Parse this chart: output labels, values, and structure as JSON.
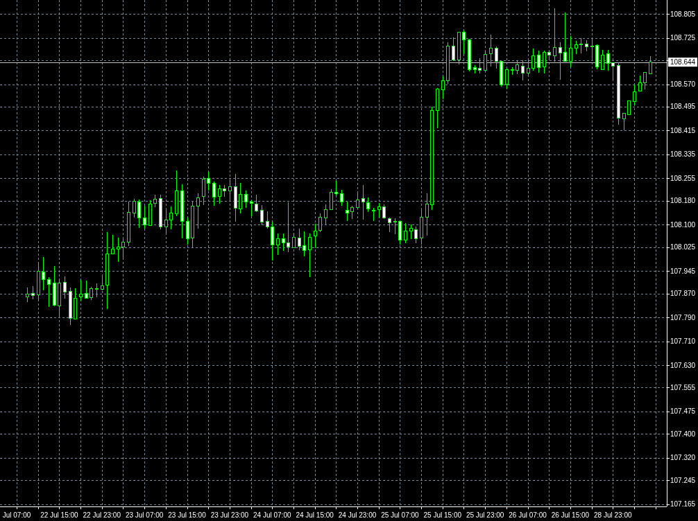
{
  "chart_data": {
    "type": "candlestick",
    "categories": [
      "Jul 07:00",
      null,
      null,
      null,
      null,
      null,
      null,
      null,
      "22 Jul 15:00",
      null,
      null,
      null,
      null,
      null,
      null,
      null,
      "22 Jul 23:00",
      null,
      null,
      null,
      null,
      null,
      null,
      null,
      "23 Jul 07:00",
      null,
      null,
      null,
      null,
      null,
      null,
      null,
      "23 Jul 15:00",
      null,
      null,
      null,
      null,
      null,
      null,
      null,
      "23 Jul 23:00",
      null,
      null,
      null,
      null,
      null,
      null,
      null,
      "24 Jul 07:00",
      null,
      null,
      null,
      null,
      null,
      null,
      null,
      "24 Jul 15:00",
      null,
      null,
      null,
      null,
      null,
      null,
      null,
      "24 Jul 23:00",
      null,
      null,
      null,
      null,
      null,
      null,
      null,
      "25 Jul 07:00",
      null,
      null,
      null,
      null,
      null,
      null,
      null,
      "25 Jul 15:00",
      null,
      null,
      null,
      null,
      null,
      null,
      null,
      "25 Jul 23:00",
      null,
      null,
      null,
      null,
      null,
      null,
      null,
      "26 Jul 07:00",
      null,
      null,
      null,
      null,
      null,
      null,
      null,
      "26 Jul 15:00",
      null,
      null,
      null,
      null,
      null,
      null,
      null,
      "28 Jul 23:00",
      null,
      null,
      null,
      null,
      null,
      null,
      null
    ],
    "ohlc": [
      null,
      null,
      [
        107.858,
        107.89,
        107.84,
        107.868
      ],
      [
        107.87,
        107.894,
        107.851,
        107.863
      ],
      [
        107.865,
        107.973,
        107.846,
        107.945
      ],
      [
        107.942,
        107.992,
        107.88,
        107.917
      ],
      [
        107.917,
        107.925,
        107.824,
        107.901
      ],
      [
        107.905,
        107.962,
        107.828,
        107.83
      ],
      [
        107.828,
        107.917,
        107.795,
        107.905
      ],
      [
        107.908,
        107.927,
        107.853,
        107.874
      ],
      [
        107.877,
        107.89,
        107.765,
        107.787
      ],
      [
        107.784,
        107.887,
        107.784,
        107.854
      ],
      [
        107.858,
        107.915,
        107.846,
        107.867
      ],
      [
        107.87,
        107.913,
        107.852,
        107.853
      ],
      [
        107.857,
        107.892,
        107.849,
        107.887
      ],
      [
        107.885,
        107.903,
        107.857,
        107.887
      ],
      [
        107.884,
        107.926,
        107.88,
        107.896
      ],
      [
        107.897,
        108.075,
        107.819,
        108.003
      ],
      [
        108.002,
        108.066,
        108.0,
        108.019
      ],
      [
        108.019,
        108.056,
        107.976,
        108.026
      ],
      [
        108.025,
        108.054,
        107.99,
        108.042
      ],
      [
        108.041,
        108.178,
        108.029,
        108.142
      ],
      [
        108.139,
        108.186,
        108.125,
        108.178
      ],
      [
        108.177,
        108.184,
        108.089,
        108.123
      ],
      [
        108.123,
        108.163,
        108.087,
        108.1
      ],
      [
        108.097,
        108.182,
        108.097,
        108.17
      ],
      [
        108.171,
        108.201,
        108.159,
        108.186
      ],
      [
        108.188,
        108.2,
        108.085,
        108.093
      ],
      [
        108.093,
        108.149,
        108.071,
        108.116
      ],
      [
        108.116,
        108.161,
        108.085,
        108.139
      ],
      [
        108.136,
        108.282,
        108.129,
        108.214
      ],
      [
        108.214,
        108.235,
        108.054,
        108.112
      ],
      [
        108.112,
        108.124,
        108.033,
        108.054
      ],
      [
        108.056,
        108.178,
        108.023,
        108.163
      ],
      [
        108.163,
        108.204,
        108.087,
        108.19
      ],
      [
        108.195,
        108.261,
        108.166,
        108.253
      ],
      [
        108.255,
        108.278,
        108.214,
        108.239
      ],
      [
        108.239,
        108.245,
        108.164,
        108.193
      ],
      [
        108.195,
        108.234,
        108.17,
        108.22
      ],
      [
        108.22,
        108.234,
        108.193,
        108.213
      ],
      [
        108.213,
        108.249,
        108.185,
        108.227
      ],
      [
        108.227,
        108.271,
        108.11,
        108.155
      ],
      [
        108.152,
        108.24,
        108.137,
        108.202
      ],
      [
        108.202,
        108.214,
        108.156,
        108.176
      ],
      [
        108.177,
        108.181,
        108.129,
        108.171
      ],
      [
        108.169,
        108.2,
        108.142,
        108.145
      ],
      [
        108.149,
        108.166,
        108.098,
        108.108
      ],
      [
        108.112,
        108.145,
        108.087,
        108.093
      ],
      [
        108.093,
        108.11,
        107.979,
        108.033
      ],
      [
        108.033,
        108.07,
        107.999,
        108.054
      ],
      [
        108.054,
        108.07,
        108.013,
        108.04
      ],
      [
        108.04,
        108.176,
        108.008,
        108.025
      ],
      [
        108.023,
        108.071,
        108.023,
        108.058
      ],
      [
        108.056,
        108.087,
        108.016,
        108.027
      ],
      [
        108.03,
        108.078,
        107.993,
        108.013
      ],
      [
        108.016,
        108.071,
        107.925,
        108.058
      ],
      [
        108.062,
        108.102,
        108.021,
        108.079
      ],
      [
        108.081,
        108.137,
        108.075,
        108.124
      ],
      [
        108.122,
        108.168,
        108.101,
        108.151
      ],
      [
        108.15,
        108.22,
        108.15,
        108.209
      ],
      [
        108.209,
        108.247,
        108.197,
        108.204
      ],
      [
        108.204,
        108.217,
        108.164,
        108.176
      ],
      [
        108.149,
        108.177,
        108.112,
        108.139
      ],
      [
        108.143,
        108.164,
        108.119,
        108.158
      ],
      [
        108.157,
        108.204,
        108.152,
        108.183
      ],
      [
        108.187,
        108.234,
        108.118,
        108.176
      ],
      [
        108.174,
        108.191,
        108.142,
        108.152
      ],
      [
        108.149,
        108.156,
        108.112,
        108.148
      ],
      [
        108.15,
        108.172,
        108.125,
        108.16
      ],
      [
        108.16,
        108.168,
        108.119,
        108.122
      ],
      [
        108.12,
        108.125,
        108.075,
        108.106
      ],
      [
        108.112,
        108.122,
        108.069,
        108.111
      ],
      [
        108.111,
        108.112,
        108.033,
        108.048
      ],
      [
        108.048,
        108.105,
        108.037,
        108.079
      ],
      [
        108.079,
        108.101,
        108.052,
        108.087
      ],
      [
        108.084,
        108.093,
        108.039,
        108.054
      ],
      [
        108.056,
        108.15,
        108.033,
        108.125
      ],
      [
        108.125,
        108.204,
        108.064,
        108.168
      ],
      [
        108.166,
        108.494,
        108.149,
        108.483
      ],
      [
        108.483,
        108.558,
        108.423,
        108.554
      ],
      [
        108.552,
        108.597,
        108.52,
        108.582
      ],
      [
        108.582,
        108.711,
        108.571,
        108.698
      ],
      [
        108.698,
        108.727,
        108.647,
        108.651
      ],
      [
        108.651,
        108.745,
        108.637,
        108.745
      ],
      [
        108.745,
        108.749,
        108.672,
        108.719
      ],
      [
        108.719,
        108.721,
        108.614,
        108.619
      ],
      [
        108.625,
        108.634,
        108.606,
        108.619
      ],
      [
        108.624,
        108.657,
        108.606,
        108.616
      ],
      [
        108.616,
        108.68,
        108.616,
        108.67
      ],
      [
        108.672,
        108.736,
        108.629,
        108.69
      ],
      [
        108.69,
        108.696,
        108.623,
        108.646
      ],
      [
        108.647,
        108.648,
        108.562,
        108.568
      ],
      [
        108.57,
        108.622,
        108.556,
        108.618
      ],
      [
        108.619,
        108.626,
        108.602,
        108.62
      ],
      [
        108.616,
        108.65,
        108.603,
        108.636
      ],
      [
        108.631,
        108.651,
        108.583,
        108.607
      ],
      [
        108.607,
        108.651,
        108.599,
        108.624
      ],
      [
        108.624,
        108.69,
        108.616,
        108.666
      ],
      [
        108.668,
        108.682,
        108.609,
        108.626
      ],
      [
        108.628,
        108.682,
        108.606,
        108.676
      ],
      [
        108.676,
        108.682,
        108.653,
        108.668
      ],
      [
        108.665,
        108.825,
        108.645,
        108.694
      ],
      [
        108.694,
        108.711,
        108.585,
        108.674
      ],
      [
        108.676,
        108.811,
        108.646,
        108.646
      ],
      [
        108.646,
        108.732,
        108.626,
        108.691
      ],
      [
        108.691,
        108.715,
        108.67,
        108.703
      ],
      [
        108.704,
        108.724,
        108.674,
        108.705
      ],
      [
        108.705,
        108.718,
        108.68,
        108.696
      ],
      [
        108.697,
        108.719,
        108.657,
        108.696
      ],
      [
        108.699,
        108.704,
        108.62,
        108.628
      ],
      [
        108.62,
        108.684,
        108.619,
        108.667
      ],
      [
        108.673,
        108.684,
        108.616,
        108.64
      ],
      [
        108.641,
        108.641,
        108.583,
        108.63
      ],
      [
        108.632,
        108.643,
        108.435,
        108.456
      ],
      [
        108.454,
        108.475,
        108.415,
        108.472
      ],
      [
        108.468,
        108.516,
        108.468,
        108.514
      ],
      [
        108.512,
        108.57,
        108.5,
        108.545
      ],
      [
        108.547,
        108.599,
        108.547,
        108.576
      ],
      [
        108.575,
        108.612,
        108.553,
        108.61
      ],
      [
        108.605,
        108.664,
        108.605,
        108.644
      ]
    ],
    "color": "#00ff00",
    "ylim": [
      107.157,
      108.852
    ],
    "yticks": [
      108.805,
      108.725,
      {
        "value": 108.65,
        "label": null
      },
      {
        "value": 108.57,
        "label": "108.570"
      },
      108.495,
      108.415,
      108.335,
      108.255,
      {
        "value": 108.18,
        "label": "108.180"
      },
      {
        "value": 108.1,
        "label": "108.100"
      },
      108.025,
      107.945,
      {
        "value": 107.87,
        "label": "107.870"
      },
      {
        "value": 107.79,
        "label": "107.790"
      },
      {
        "value": 107.71,
        "label": "107.710"
      },
      {
        "value": 107.63,
        "label": "107.630"
      },
      107.555,
      107.475,
      {
        "value": 107.4,
        "label": "107.400"
      },
      {
        "value": 107.32,
        "label": "107.320"
      },
      107.245,
      107.165
    ],
    "grid": true,
    "ref_lines": [
      {
        "axis": "y",
        "value": 108.644,
        "label": "108.644",
        "color": "#c0c0c0"
      }
    ]
  }
}
